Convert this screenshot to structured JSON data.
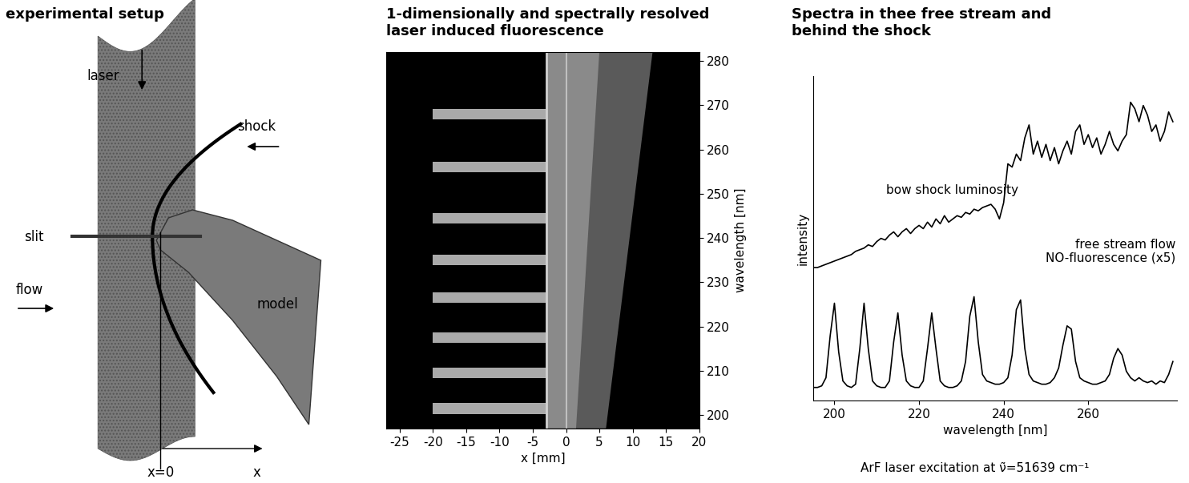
{
  "diagram": {
    "title": "experimental setup",
    "labels": {
      "laser": "laser",
      "shock": "shock",
      "slit": "slit",
      "flow": "flow",
      "model": "model",
      "x0": "x=0",
      "x": "x"
    }
  },
  "image": {
    "title": "1-dimensionally and spectrally resolved\nlaser induced fluorescence",
    "xlabel": "x [mm]",
    "ylabel": "wavelength [nm]",
    "xlim": [
      -27,
      20
    ],
    "xticks": [
      -25,
      -20,
      -15,
      -10,
      -5,
      0,
      5,
      10,
      15,
      20
    ],
    "ylim": [
      197,
      282
    ],
    "yticks": [
      200,
      210,
      220,
      230,
      240,
      250,
      260,
      270,
      280
    ],
    "band_centers": [
      201.5,
      209.5,
      217.5,
      226.5,
      235,
      244.5,
      256,
      268
    ],
    "band_x": [
      -20,
      -3
    ],
    "luminosity_x_left": -3,
    "luminosity_x_right": [
      6,
      13
    ]
  },
  "chart_data": {
    "type": "line",
    "title": "Spectra in thee free stream and\nbehind the shock",
    "xlabel": "wavelength [nm]",
    "ylabel": "intensity",
    "xlim": [
      195,
      281
    ],
    "xticks": [
      200,
      220,
      240,
      260
    ],
    "ylim": [
      0,
      10
    ],
    "tick_labels": "x",
    "caption": "ArF laser excitation at ν̃=51639 cm⁻¹",
    "x": [
      195,
      196,
      197,
      198,
      199,
      200,
      201,
      202,
      203,
      204,
      205,
      206,
      207,
      208,
      209,
      210,
      211,
      212,
      213,
      214,
      215,
      216,
      217,
      218,
      219,
      220,
      221,
      222,
      223,
      224,
      225,
      226,
      227,
      228,
      229,
      230,
      231,
      232,
      233,
      234,
      235,
      236,
      237,
      238,
      239,
      240,
      241,
      242,
      243,
      244,
      245,
      246,
      247,
      248,
      249,
      250,
      251,
      252,
      253,
      254,
      255,
      256,
      257,
      258,
      259,
      260,
      261,
      262,
      263,
      264,
      265,
      266,
      267,
      268,
      269,
      270,
      271,
      272,
      273,
      274,
      275,
      276,
      277,
      278,
      279,
      280
    ],
    "series": [
      {
        "name": "bow shock luminosity",
        "color": "#000000",
        "values": [
          4.1,
          4.1,
          4.15,
          4.2,
          4.25,
          4.3,
          4.35,
          4.4,
          4.45,
          4.5,
          4.6,
          4.65,
          4.7,
          4.8,
          4.75,
          4.9,
          5.0,
          4.95,
          5.1,
          5.2,
          5.05,
          5.2,
          5.3,
          5.15,
          5.3,
          5.4,
          5.3,
          5.5,
          5.35,
          5.6,
          5.45,
          5.7,
          5.5,
          5.6,
          5.7,
          5.65,
          5.8,
          5.75,
          5.9,
          5.85,
          5.95,
          6.0,
          6.05,
          5.9,
          5.6,
          6.1,
          7.3,
          7.2,
          7.6,
          7.4,
          8.1,
          8.5,
          7.6,
          8.0,
          7.5,
          7.9,
          7.4,
          7.8,
          7.3,
          7.7,
          8.0,
          7.6,
          8.3,
          8.5,
          7.9,
          8.2,
          7.8,
          8.1,
          7.6,
          7.9,
          8.3,
          7.9,
          7.7,
          8.0,
          8.2,
          9.2,
          9.0,
          8.6,
          9.1,
          8.8,
          8.3,
          8.5,
          8.0,
          8.3,
          8.9,
          8.6
        ]
      },
      {
        "name": "free stream flow\nNO-fluorescence (x5)",
        "color": "#000000",
        "values": [
          0.4,
          0.4,
          0.45,
          0.7,
          2.0,
          3.0,
          1.5,
          0.6,
          0.45,
          0.4,
          0.5,
          1.6,
          3.0,
          1.6,
          0.6,
          0.45,
          0.4,
          0.4,
          0.6,
          1.8,
          2.7,
          1.4,
          0.6,
          0.45,
          0.4,
          0.4,
          0.6,
          1.6,
          2.7,
          1.6,
          0.6,
          0.45,
          0.4,
          0.4,
          0.45,
          0.6,
          1.2,
          2.6,
          3.2,
          1.8,
          0.8,
          0.6,
          0.55,
          0.5,
          0.5,
          0.55,
          0.7,
          1.4,
          2.8,
          3.1,
          1.6,
          0.8,
          0.6,
          0.55,
          0.5,
          0.5,
          0.55,
          0.7,
          1.0,
          1.7,
          2.3,
          2.2,
          1.2,
          0.7,
          0.6,
          0.55,
          0.5,
          0.5,
          0.55,
          0.6,
          0.8,
          1.3,
          1.6,
          1.4,
          0.9,
          0.7,
          0.6,
          0.7,
          0.6,
          0.55,
          0.6,
          0.5,
          0.6,
          0.55,
          0.8,
          1.2
        ]
      }
    ]
  }
}
